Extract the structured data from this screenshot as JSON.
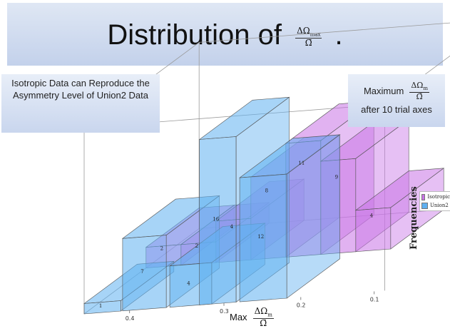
{
  "header": {
    "title_text": "Distribution of",
    "title_frac_num": "ΔΩ",
    "title_frac_sub": "max",
    "title_frac_den": "Ω̄",
    "title_period": "."
  },
  "annotations": {
    "left_box": "Isotropic Data can Reproduce the Asymmetry Level of Union2 Data",
    "right_box_prefix": "Maximum",
    "right_box_frac_num": "ΔΩ",
    "right_box_frac_sub": "m",
    "right_box_frac_den": "Ω̄",
    "right_box_suffix": "after 10 trial axes"
  },
  "colors": {
    "isotropic": "#c873e6",
    "union2": "#5fb0f0"
  },
  "chart_data": {
    "type": "bar",
    "x_ticks": [
      "0.1",
      "0.2",
      "0.3",
      "0.4"
    ],
    "y_ticks": [
      "0",
      "5",
      "10",
      "15"
    ],
    "xlabel_prefix": "Max",
    "xlabel_frac_num": "ΔΩ",
    "xlabel_frac_sub": "m",
    "xlabel_frac_den": "Ω̄",
    "ylabel": "Frequencies",
    "ylim": [
      0,
      16
    ],
    "legend_position": "right",
    "series": [
      {
        "name": "Isotropic",
        "values": [
          2,
          2,
          4,
          8,
          11,
          9,
          4
        ],
        "labels": [
          "2",
          "2",
          "4",
          "8",
          "11",
          "9",
          "4"
        ]
      },
      {
        "name": "Union2",
        "values": [
          1,
          7,
          4,
          16,
          12
        ],
        "labels": [
          "1",
          "7",
          "4",
          "16",
          "12"
        ]
      }
    ]
  }
}
